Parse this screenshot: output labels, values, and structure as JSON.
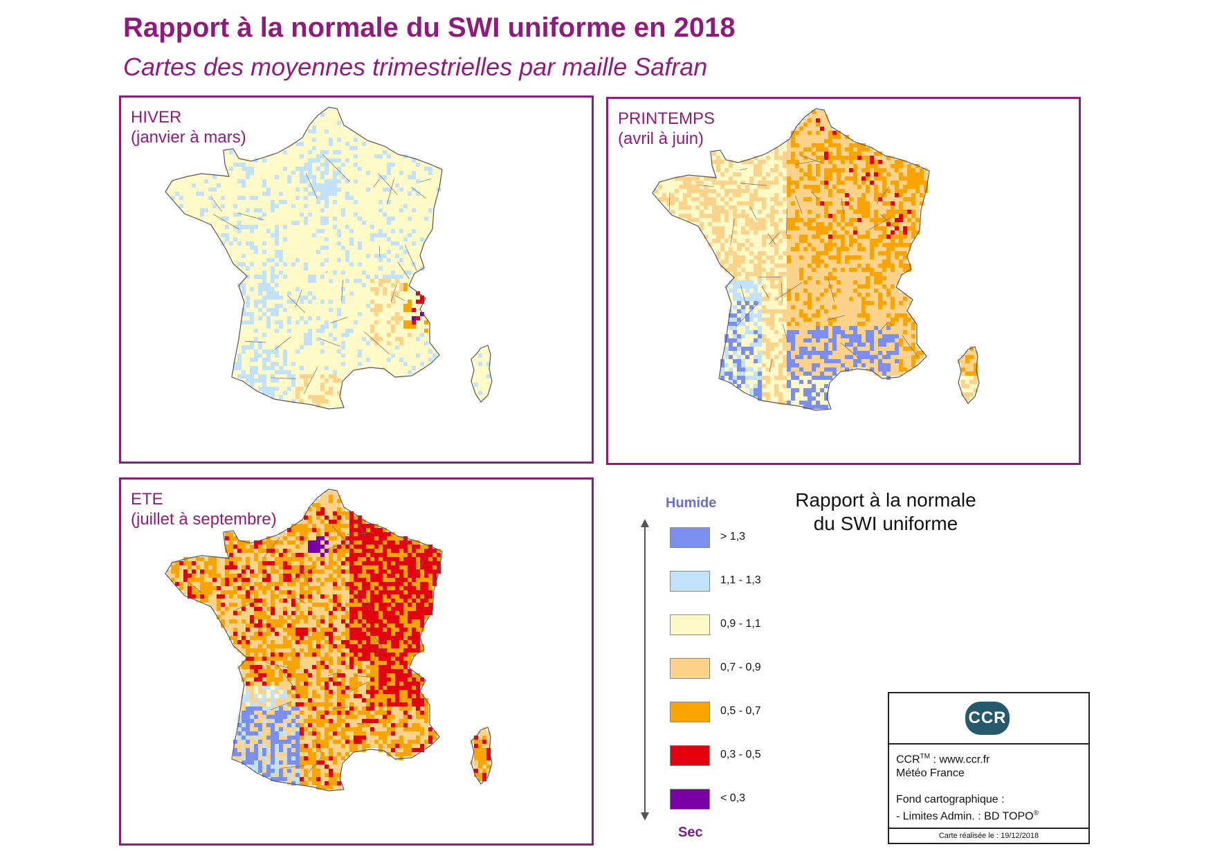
{
  "header": {
    "title": "Rapport à la normale du SWI uniforme en 2018",
    "subtitle": "Cartes des moyennes trimestrielles par maille Safran"
  },
  "panels": [
    {
      "id": "hiver",
      "title": "HIVER",
      "period": "(janvier à mars)"
    },
    {
      "id": "printemps",
      "title": "PRINTEMPS",
      "period": "(avril à juin)"
    },
    {
      "id": "ete",
      "title": "ETE",
      "period": "(juillet à septembre)"
    }
  ],
  "legend": {
    "title_line1": "Rapport à la normale",
    "title_line2": "du SWI uniforme",
    "top_label": "Humide",
    "bottom_label": "Sec",
    "classes": [
      {
        "label": "> 1,3",
        "color": "#7b8ff0"
      },
      {
        "label": "1,1 - 1,3",
        "color": "#c2e2fa"
      },
      {
        "label": "0,9 - 1,1",
        "color": "#fffac8"
      },
      {
        "label": "0,7 - 0,9",
        "color": "#fdd28a"
      },
      {
        "label": "0,5 - 0,7",
        "color": "#f9a400"
      },
      {
        "label": "0,3 - 0,5",
        "color": "#e3000f"
      },
      {
        "label": "< 0,3",
        "color": "#7a00a6"
      }
    ]
  },
  "credits": {
    "logo_text": "CCR",
    "line1_prefix": "CCR",
    "line1_tm": "TM",
    "line1_suffix": " : www.ccr.fr",
    "line2": "Météo France",
    "line3": "Fond cartographique :",
    "line4_prefix": "- Limites Admin. : BD TOPO",
    "line4_reg": "®",
    "date_line": "Carte réalisée le : 19/12/2018"
  },
  "colors": {
    "accent": "#8e1c7c",
    "border_lines": "#555555"
  }
}
